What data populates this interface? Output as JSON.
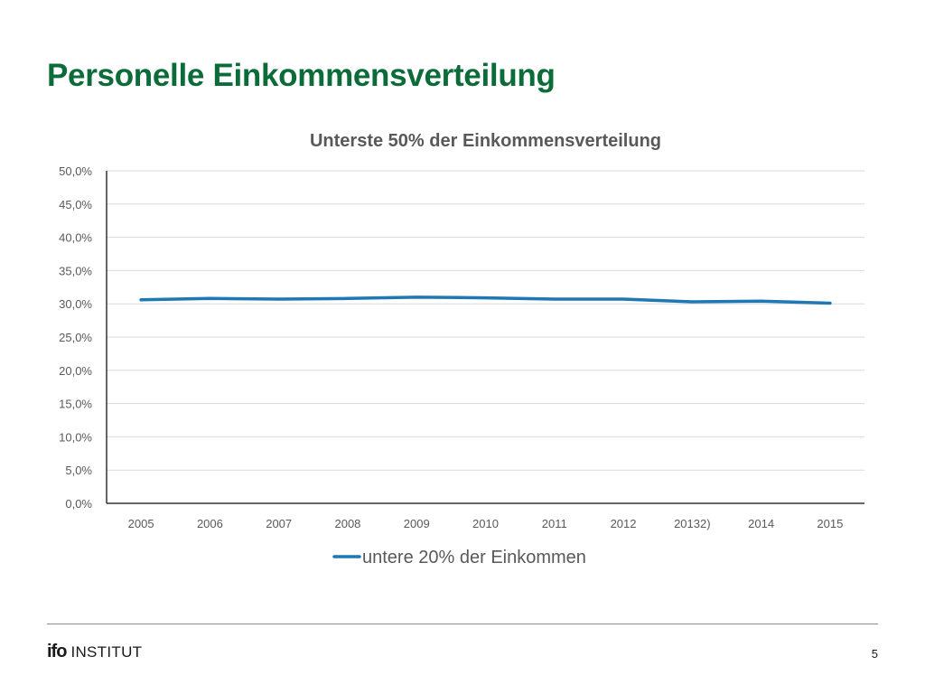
{
  "slide": {
    "title": "Personelle Einkommensverteilung",
    "page_number": "5",
    "logo": {
      "mark": "ifo",
      "text": "INSTITUT"
    }
  },
  "colors": {
    "title": "#0b6b39",
    "series": "#1f77b4",
    "grid": "#d9d9d9",
    "axis": "#333333",
    "tick_text": "#595959",
    "chart_title": "#595959"
  },
  "chart_data": {
    "type": "line",
    "title": "Unterste 50% der Einkommensverteilung",
    "xlabel": "",
    "ylabel": "",
    "categories": [
      "2005",
      "2006",
      "2007",
      "2008",
      "2009",
      "2010",
      "2011",
      "2012",
      "20132)",
      "2014",
      "2015"
    ],
    "y_ticks": [
      "0,0%",
      "5,0%",
      "10,0%",
      "15,0%",
      "20,0%",
      "25,0%",
      "30,0%",
      "35,0%",
      "40,0%",
      "45,0%",
      "50,0%"
    ],
    "ylim": [
      0,
      50
    ],
    "y_unit": "%",
    "grid": true,
    "legend_position": "bottom",
    "series": [
      {
        "name": "untere 20% der Einkommen",
        "values": [
          30.6,
          30.8,
          30.7,
          30.8,
          31.0,
          30.9,
          30.7,
          30.7,
          30.3,
          30.4,
          30.1
        ]
      }
    ]
  }
}
